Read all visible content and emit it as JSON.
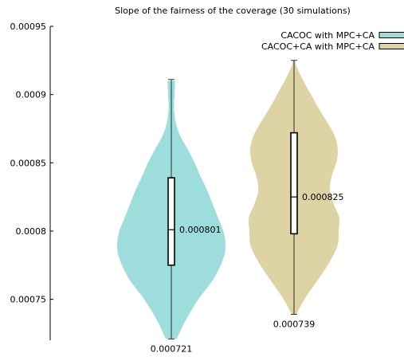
{
  "chart_data": {
    "type": "violin",
    "title": "Slope of the fairness of the coverage (30 simulations)",
    "xlabel": "",
    "ylabel": "",
    "ylim": [
      0.00072,
      0.00095
    ],
    "yticks": [
      {
        "value": 0.00095,
        "label": "0.00095"
      },
      {
        "value": 0.0009,
        "label": "0.0009"
      },
      {
        "value": 0.00085,
        "label": "0.00085"
      },
      {
        "value": 0.0008,
        "label": "0.0008"
      },
      {
        "value": 0.00075,
        "label": "0.00075"
      }
    ],
    "legend": "top-right",
    "grid": false,
    "series": [
      {
        "name": "CACOC with MPC+CA",
        "color": "#9ddedc",
        "min": 0.000721,
        "q1": 0.000775,
        "median": 0.000801,
        "q3": 0.000839,
        "max": 0.000911,
        "median_label": "0.000801",
        "min_label": "0.000721",
        "density": [
          [
            0.000721,
            0.1
          ],
          [
            0.000735,
            0.27
          ],
          [
            0.00075,
            0.5
          ],
          [
            0.000765,
            0.78
          ],
          [
            0.00078,
            0.96
          ],
          [
            0.00079,
            1.0
          ],
          [
            0.0008,
            0.96
          ],
          [
            0.00081,
            0.86
          ],
          [
            0.00082,
            0.76
          ],
          [
            0.00083,
            0.66
          ],
          [
            0.00084,
            0.54
          ],
          [
            0.00085,
            0.43
          ],
          [
            0.00086,
            0.3
          ],
          [
            0.00087,
            0.16
          ],
          [
            0.00088,
            0.08
          ],
          [
            0.00089,
            0.05
          ],
          [
            0.0009,
            0.06
          ],
          [
            0.00091,
            0.07
          ]
        ]
      },
      {
        "name": "CACOC+CA with MPC+CA",
        "color": "#ddd3a4",
        "min": 0.000739,
        "q1": 0.000798,
        "median": 0.000825,
        "q3": 0.000872,
        "max": 0.000925,
        "median_label": "0.000825",
        "min_label": "0.000739",
        "density": [
          [
            0.000739,
            0.05
          ],
          [
            0.00075,
            0.22
          ],
          [
            0.00076,
            0.42
          ],
          [
            0.00077,
            0.62
          ],
          [
            0.00078,
            0.8
          ],
          [
            0.00079,
            0.93
          ],
          [
            0.0008,
            0.95
          ],
          [
            0.00081,
            0.96
          ],
          [
            0.00082,
            0.84
          ],
          [
            0.00083,
            0.76
          ],
          [
            0.00084,
            0.8
          ],
          [
            0.00085,
            0.9
          ],
          [
            0.00086,
            0.93
          ],
          [
            0.00087,
            0.86
          ],
          [
            0.00088,
            0.7
          ],
          [
            0.00089,
            0.52
          ],
          [
            0.0009,
            0.36
          ],
          [
            0.00091,
            0.2
          ],
          [
            0.00092,
            0.06
          ],
          [
            0.000925,
            0.02
          ]
        ]
      }
    ]
  }
}
